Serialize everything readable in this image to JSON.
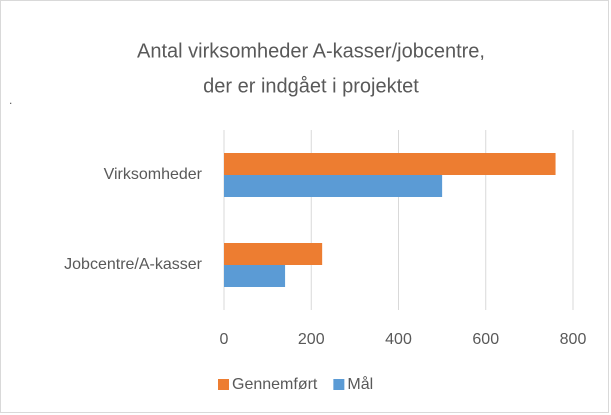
{
  "chart_data": {
    "type": "hbar",
    "title": [
      "Antal virksomheder A-kasser/jobcentre,",
      "der er indgået i projektet"
    ],
    "annotation": ".",
    "categories": [
      "Virksomheder",
      "Jobcentre/A-kasser"
    ],
    "series": [
      {
        "name": "Gennemført",
        "color": "#ed7d31",
        "values": [
          760,
          225
        ]
      },
      {
        "name": "Mål",
        "color": "#5b9bd5",
        "values": [
          500,
          140
        ]
      }
    ],
    "xlim": [
      0,
      800
    ],
    "xticks": [
      0,
      200,
      400,
      600,
      800
    ],
    "grid": true,
    "legend": "bottom"
  }
}
